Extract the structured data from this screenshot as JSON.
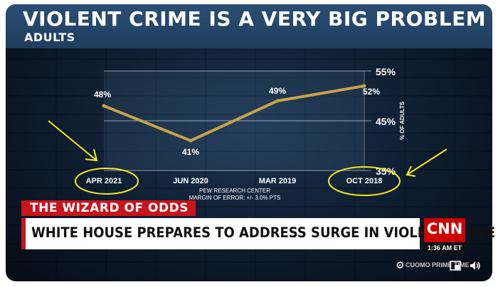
{
  "headline": {
    "title": "VIOLENT CRIME IS A VERY BIG PROBLEM",
    "subtitle": "ADULTS"
  },
  "chart_data": {
    "type": "line",
    "title": "VIOLENT CRIME IS A VERY BIG PROBLEM",
    "subtitle": "ADULTS",
    "categories": [
      "APR 2021",
      "JUN 2020",
      "MAR 2019",
      "OCT 2018"
    ],
    "values": [
      48,
      41,
      49,
      52
    ],
    "data_labels": [
      "48%",
      "41%",
      "49%",
      "52%"
    ],
    "ylabel": "% OF ADULTS",
    "ylim": [
      35,
      55
    ],
    "y_ticks": [
      "55%",
      "45%",
      "35%"
    ],
    "y_tick_values": [
      55,
      45,
      35
    ],
    "y_axis_side": "right",
    "grid": true,
    "line_color": "#c8a24a",
    "source": "PEW RESEARCH CENTER",
    "note": "MARGIN OF ERROR: +/- 3.0% PTS"
  },
  "lower_third": {
    "kicker": "THE WIZARD OF ODDS",
    "headline": "WHITE HOUSE PREPARES TO ADDRESS SURGE IN VIOLENT CRIME",
    "network": "CNN",
    "time": "1:36 AM ET",
    "ticker": "CUOMO PRIME TIME"
  },
  "colors": {
    "accent_red": "#c8141a",
    "annotation_yellow": "#f2ea1f",
    "chart_line": "#c8a24a"
  },
  "controls": {
    "settings": "gear-icon",
    "pip": "picture-in-picture-icon",
    "volume": "speaker-icon"
  }
}
